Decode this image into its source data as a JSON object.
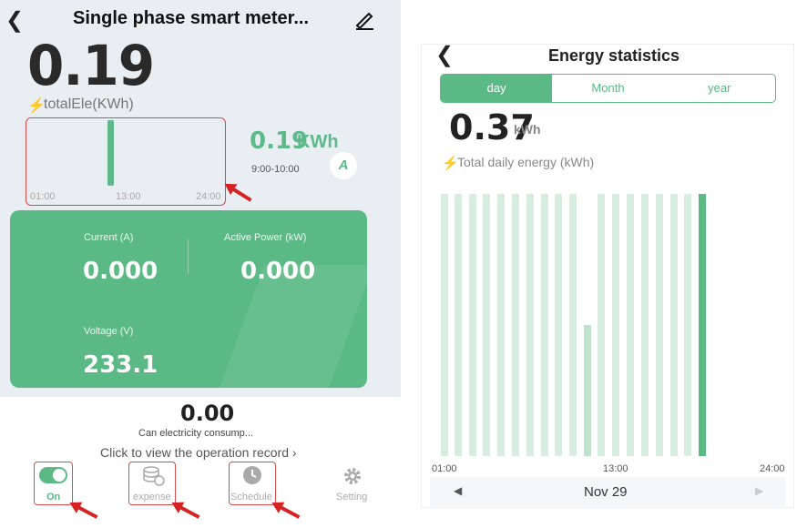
{
  "left": {
    "title": "Single phase smart meter...",
    "big_value": "0.19",
    "total_label": "totalEle(KWh)",
    "mini_chart_ticks": [
      "01:00",
      "13:00",
      "24:00"
    ],
    "mini_chart_value": "0.19",
    "mini_chart_unit": "KWh",
    "time_range": "9:00-10:00",
    "current_label": "Current (A)",
    "current_value": "0.000",
    "power_label": "Active Power (kW)",
    "power_value": "0.000",
    "voltage_label": "Voltage (V)",
    "voltage_value": "233.1",
    "auto_badge": "A",
    "consumption_value": "0.00",
    "consumption_label": "Can electricity consump...",
    "record_link": "Click to view the operation record ›",
    "tabs": [
      {
        "label": "On",
        "icon": "toggle-icon"
      },
      {
        "label": "expense",
        "icon": "coins-icon"
      },
      {
        "label": "Schedule",
        "icon": "clock-icon"
      },
      {
        "label": "Setting",
        "icon": "gear-icon"
      }
    ],
    "colors": {
      "accent": "#5bb985",
      "bolt": "#f5b301",
      "annotation": "#d62222"
    }
  },
  "right": {
    "title": "Energy statistics",
    "segments": [
      "day",
      "Month",
      "year"
    ],
    "active_segment": "day",
    "big_value": "0.37",
    "unit": "kWh",
    "daily_label": "Total daily energy (kWh)",
    "x_ticks": [
      "01:00",
      "13:00",
      "24:00"
    ],
    "date": "Nov 29"
  }
}
